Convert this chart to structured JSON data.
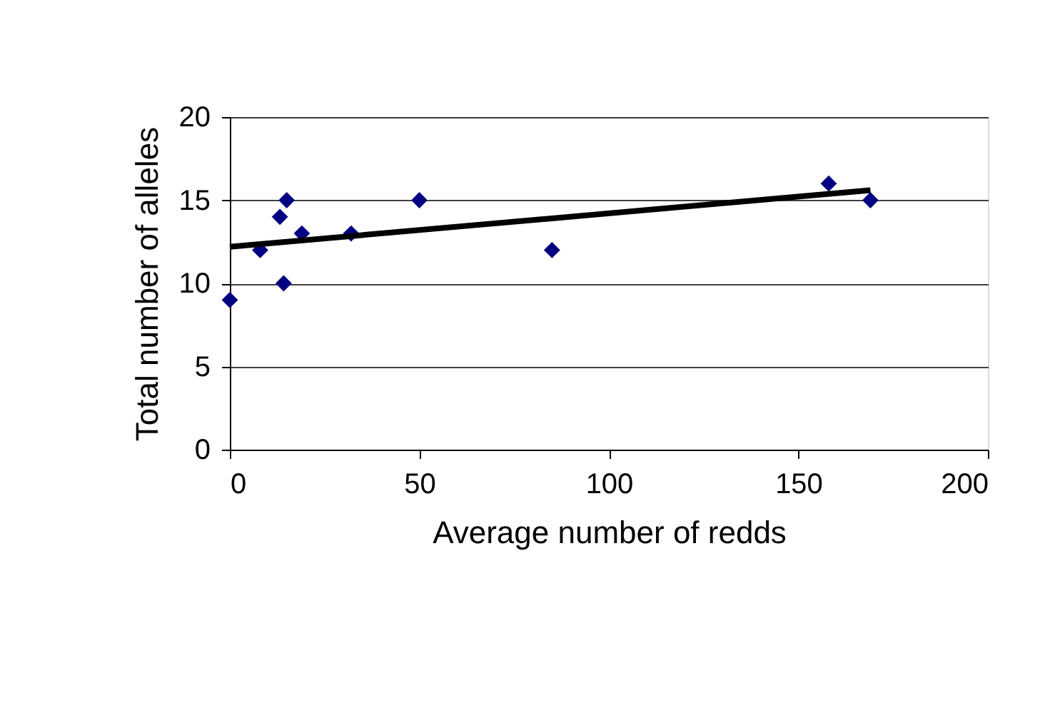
{
  "chart_data": {
    "type": "scatter",
    "xlabel": "Average number of redds",
    "ylabel": "Total number of alleles",
    "xlim": [
      0,
      200
    ],
    "xticks": [
      0,
      50,
      100,
      150,
      200
    ],
    "ylim": [
      0,
      20
    ],
    "yticks": [
      0,
      5,
      10,
      15,
      20
    ],
    "grid": "y",
    "series": [
      {
        "color": "#000080",
        "marker": "diamond",
        "x": [
          0,
          8,
          13.2,
          14.2,
          15,
          19,
          32,
          50,
          85,
          158,
          169
        ],
        "values": [
          9,
          12,
          14,
          10,
          15,
          13,
          13,
          15,
          12,
          16,
          15
        ]
      },
      {
        "type": "line",
        "color": "#000000",
        "line_style": "solid",
        "marker": "none",
        "x": [
          0,
          169
        ],
        "values": [
          12.2,
          15.6
        ]
      }
    ]
  }
}
